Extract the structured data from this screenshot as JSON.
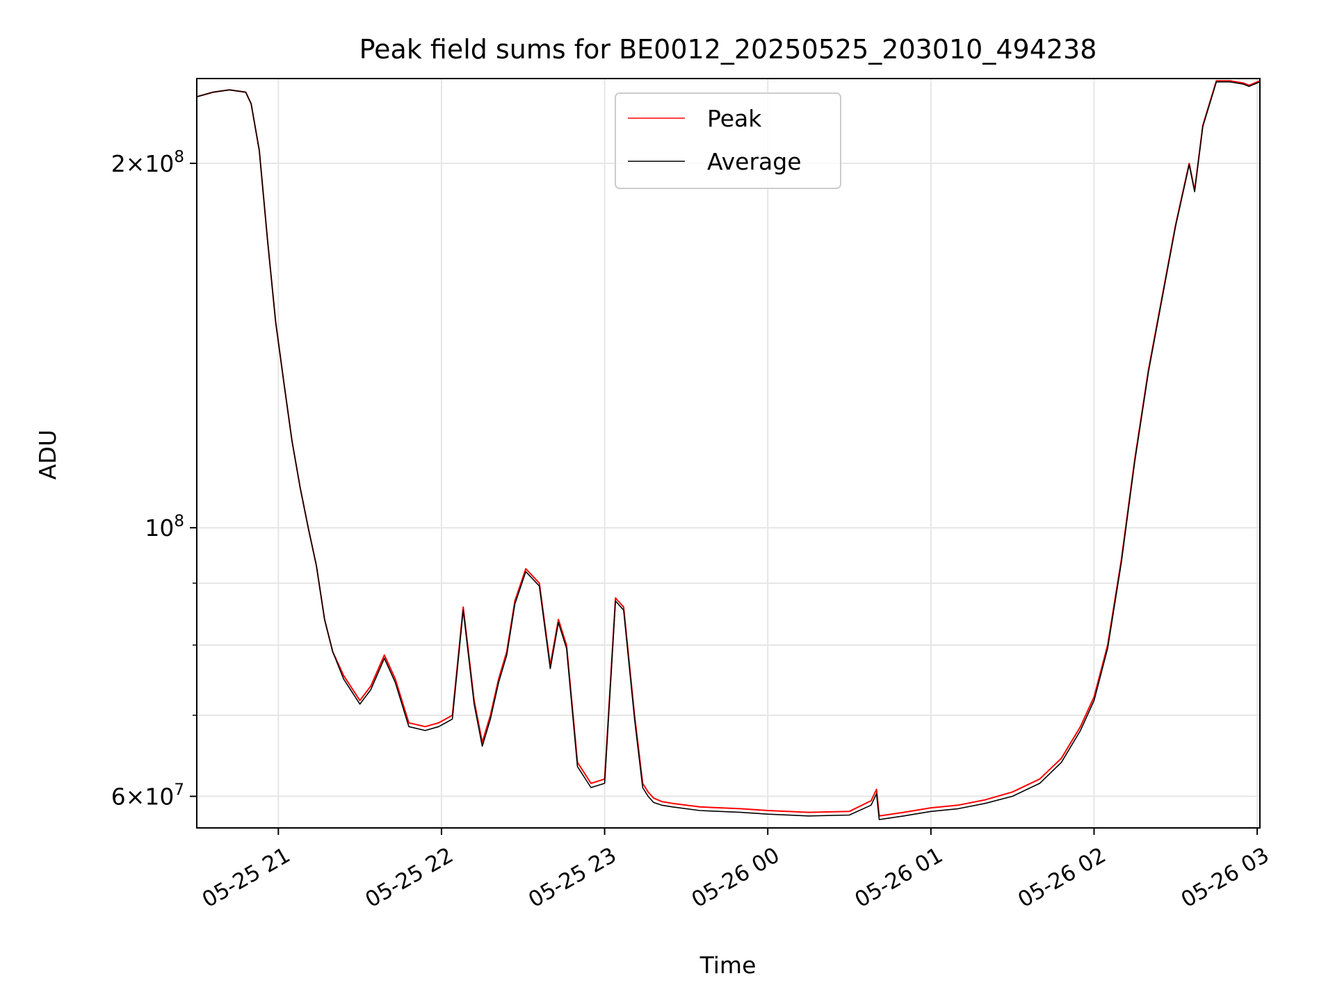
{
  "chart_data": {
    "type": "line",
    "title": "Peak field sums for BE0012_20250525_203010_494238",
    "xlabel": "Time",
    "ylabel": "ADU",
    "y_scale": "log",
    "ylim": [
      56500000,
      235000000
    ],
    "xlim": [
      "2025-05-25 20:30",
      "2025-05-26 03:01"
    ],
    "grid": true,
    "legend_position": "upper center",
    "x_ticks": [
      {
        "value": "2025-05-25 21:00",
        "label": "05-25 21"
      },
      {
        "value": "2025-05-25 22:00",
        "label": "05-25 22"
      },
      {
        "value": "2025-05-25 23:00",
        "label": "05-25 23"
      },
      {
        "value": "2025-05-26 00:00",
        "label": "05-26 00"
      },
      {
        "value": "2025-05-26 01:00",
        "label": "05-26 01"
      },
      {
        "value": "2025-05-26 02:00",
        "label": "05-26 02"
      },
      {
        "value": "2025-05-26 03:00",
        "label": "05-26 03"
      }
    ],
    "y_ticks_major": [
      {
        "value": 60000000,
        "mantissa": "6",
        "exponent": "7",
        "has_mantissa": true
      },
      {
        "value": 100000000,
        "mantissa": "",
        "exponent": "8",
        "has_mantissa": false
      },
      {
        "value": 200000000,
        "mantissa": "2",
        "exponent": "8",
        "has_mantissa": true
      }
    ],
    "y_ticks_minor": [
      70000000,
      80000000,
      90000000
    ],
    "series": [
      {
        "name": "Peak",
        "color": "#ff0000",
        "x": [
          "2025-05-25 20:30",
          "2025-05-25 20:36",
          "2025-05-25 20:42",
          "2025-05-25 20:48",
          "2025-05-25 20:50",
          "2025-05-25 20:53",
          "2025-05-25 20:56",
          "2025-05-25 20:59",
          "2025-05-25 21:02",
          "2025-05-25 21:05",
          "2025-05-25 21:08",
          "2025-05-25 21:11",
          "2025-05-25 21:14",
          "2025-05-25 21:17",
          "2025-05-25 21:20",
          "2025-05-25 21:24",
          "2025-05-25 21:30",
          "2025-05-25 21:34",
          "2025-05-25 21:39",
          "2025-05-25 21:43",
          "2025-05-25 21:48",
          "2025-05-25 21:54",
          "2025-05-25 21:59",
          "2025-05-25 22:04",
          "2025-05-25 22:08",
          "2025-05-25 22:12",
          "2025-05-25 22:15",
          "2025-05-25 22:18",
          "2025-05-25 22:21",
          "2025-05-25 22:24",
          "2025-05-25 22:27",
          "2025-05-25 22:31",
          "2025-05-25 22:36",
          "2025-05-25 22:40",
          "2025-05-25 22:43",
          "2025-05-25 22:46",
          "2025-05-25 22:50",
          "2025-05-25 22:55",
          "2025-05-25 23:00",
          "2025-05-25 23:04",
          "2025-05-25 23:07",
          "2025-05-25 23:11",
          "2025-05-25 23:14",
          "2025-05-25 23:16",
          "2025-05-25 23:18",
          "2025-05-25 23:21",
          "2025-05-25 23:25",
          "2025-05-25 23:35",
          "2025-05-25 23:50",
          "2025-05-26 00:00",
          "2025-05-26 00:15",
          "2025-05-26 00:30",
          "2025-05-26 00:38",
          "2025-05-26 00:40",
          "2025-05-26 00:41",
          "2025-05-26 00:50",
          "2025-05-26 01:00",
          "2025-05-26 01:10",
          "2025-05-26 01:20",
          "2025-05-26 01:30",
          "2025-05-26 01:40",
          "2025-05-26 01:48",
          "2025-05-26 01:55",
          "2025-05-26 02:00",
          "2025-05-26 02:05",
          "2025-05-26 02:10",
          "2025-05-26 02:15",
          "2025-05-26 02:20",
          "2025-05-26 02:25",
          "2025-05-26 02:30",
          "2025-05-26 02:35",
          "2025-05-26 02:37",
          "2025-05-26 02:40",
          "2025-05-26 02:45",
          "2025-05-26 02:50",
          "2025-05-26 02:55",
          "2025-05-26 02:57",
          "2025-05-26 03:01"
        ],
        "y": [
          227000000,
          229000000,
          230000000,
          229000000,
          224000000,
          205000000,
          173000000,
          148000000,
          132000000,
          118000000,
          108000000,
          100000000,
          93000000,
          84000000,
          79000000,
          75500000,
          72000000,
          74000000,
          78500000,
          75000000,
          69000000,
          68500000,
          69000000,
          70000000,
          86000000,
          72000000,
          66500000,
          70000000,
          75000000,
          79000000,
          87000000,
          92500000,
          90000000,
          77000000,
          84000000,
          80000000,
          64000000,
          61500000,
          62000000,
          87500000,
          86000000,
          70000000,
          61500000,
          60500000,
          59800000,
          59400000,
          59200000,
          58800000,
          58600000,
          58400000,
          58200000,
          58300000,
          59500000,
          60800000,
          57800000,
          58200000,
          58700000,
          59000000,
          59600000,
          60500000,
          62000000,
          64500000,
          68500000,
          72500000,
          80000000,
          94000000,
          114000000,
          135000000,
          155000000,
          178000000,
          200000000,
          190000000,
          215000000,
          234000000,
          234000000,
          233000000,
          232000000,
          234000000
        ]
      },
      {
        "name": "Average",
        "color": "#000000",
        "x": [
          "2025-05-25 20:30",
          "2025-05-25 20:36",
          "2025-05-25 20:42",
          "2025-05-25 20:48",
          "2025-05-25 20:50",
          "2025-05-25 20:53",
          "2025-05-25 20:56",
          "2025-05-25 20:59",
          "2025-05-25 21:02",
          "2025-05-25 21:05",
          "2025-05-25 21:08",
          "2025-05-25 21:11",
          "2025-05-25 21:14",
          "2025-05-25 21:17",
          "2025-05-25 21:20",
          "2025-05-25 21:24",
          "2025-05-25 21:30",
          "2025-05-25 21:34",
          "2025-05-25 21:39",
          "2025-05-25 21:43",
          "2025-05-25 21:48",
          "2025-05-25 21:54",
          "2025-05-25 21:59",
          "2025-05-25 22:04",
          "2025-05-25 22:08",
          "2025-05-25 22:12",
          "2025-05-25 22:15",
          "2025-05-25 22:18",
          "2025-05-25 22:21",
          "2025-05-25 22:24",
          "2025-05-25 22:27",
          "2025-05-25 22:31",
          "2025-05-25 22:36",
          "2025-05-25 22:40",
          "2025-05-25 22:43",
          "2025-05-25 22:46",
          "2025-05-25 22:50",
          "2025-05-25 22:55",
          "2025-05-25 23:00",
          "2025-05-25 23:04",
          "2025-05-25 23:07",
          "2025-05-25 23:11",
          "2025-05-25 23:14",
          "2025-05-25 23:16",
          "2025-05-25 23:18",
          "2025-05-25 23:21",
          "2025-05-25 23:25",
          "2025-05-25 23:35",
          "2025-05-25 23:50",
          "2025-05-26 00:00",
          "2025-05-26 00:15",
          "2025-05-26 00:30",
          "2025-05-26 00:38",
          "2025-05-26 00:40",
          "2025-05-26 00:41",
          "2025-05-26 00:50",
          "2025-05-26 01:00",
          "2025-05-26 01:10",
          "2025-05-26 01:20",
          "2025-05-26 01:30",
          "2025-05-26 01:40",
          "2025-05-26 01:48",
          "2025-05-26 01:55",
          "2025-05-26 02:00",
          "2025-05-26 02:05",
          "2025-05-26 02:10",
          "2025-05-26 02:15",
          "2025-05-26 02:20",
          "2025-05-26 02:25",
          "2025-05-26 02:30",
          "2025-05-26 02:35",
          "2025-05-26 02:37",
          "2025-05-26 02:40",
          "2025-05-26 02:45",
          "2025-05-26 02:50",
          "2025-05-26 02:55",
          "2025-05-26 02:57",
          "2025-05-26 03:01"
        ],
        "y": [
          227000000,
          229000000,
          230000000,
          229000000,
          224000000,
          205000000,
          173000000,
          148000000,
          132000000,
          118000000,
          108000000,
          100000000,
          93000000,
          84000000,
          79000000,
          75000000,
          71500000,
          73500000,
          78000000,
          74500000,
          68500000,
          68000000,
          68500000,
          69500000,
          85500000,
          71500000,
          66000000,
          69500000,
          74500000,
          78500000,
          86500000,
          92000000,
          89500000,
          76500000,
          83500000,
          79500000,
          63500000,
          61000000,
          61500000,
          87000000,
          85500000,
          69500000,
          61000000,
          60000000,
          59300000,
          59000000,
          58800000,
          58400000,
          58200000,
          58000000,
          57800000,
          57900000,
          59000000,
          60300000,
          57400000,
          57800000,
          58300000,
          58600000,
          59200000,
          60000000,
          61500000,
          64000000,
          68000000,
          72000000,
          79500000,
          93500000,
          113500000,
          134500000,
          154500000,
          177500000,
          199500000,
          189500000,
          214500000,
          233500000,
          233500000,
          232500000,
          231500000,
          233500000
        ]
      }
    ]
  }
}
